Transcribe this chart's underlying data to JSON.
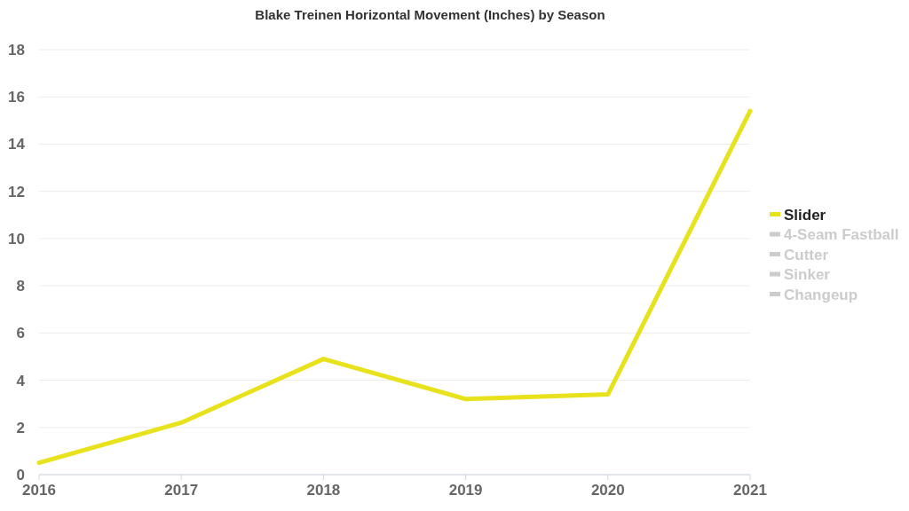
{
  "chart_data": {
    "type": "line",
    "title": "Blake Treinen Horizontal Movement (Inches) by Season",
    "x": [
      2016,
      2017,
      2018,
      2019,
      2020,
      2021
    ],
    "xlim": [
      2016,
      2021
    ],
    "xticks": [
      2016,
      2017,
      2018,
      2019,
      2020,
      2021
    ],
    "ylim": [
      0,
      18
    ],
    "yticks": [
      0,
      2,
      4,
      6,
      8,
      10,
      12,
      14,
      16,
      18
    ],
    "grid": "y",
    "legend": "right",
    "marker": "none",
    "line_style": "solid",
    "series": [
      {
        "name": "Slider",
        "color": "#e8e21c",
        "values": [
          0.5,
          2.2,
          4.9,
          3.2,
          3.4,
          15.4
        ]
      },
      {
        "name": "4-Seam Fastball",
        "color": "#cccccc",
        "values": [
          null,
          null,
          null,
          null,
          null,
          null
        ]
      },
      {
        "name": "Cutter",
        "color": "#cccccc",
        "values": [
          null,
          null,
          null,
          null,
          null,
          null
        ]
      },
      {
        "name": "Sinker",
        "color": "#cccccc",
        "values": [
          null,
          null,
          null,
          null,
          null,
          null
        ]
      },
      {
        "name": "Changeup",
        "color": "#cccccc",
        "values": [
          null,
          null,
          null,
          null,
          null,
          null
        ]
      }
    ]
  }
}
